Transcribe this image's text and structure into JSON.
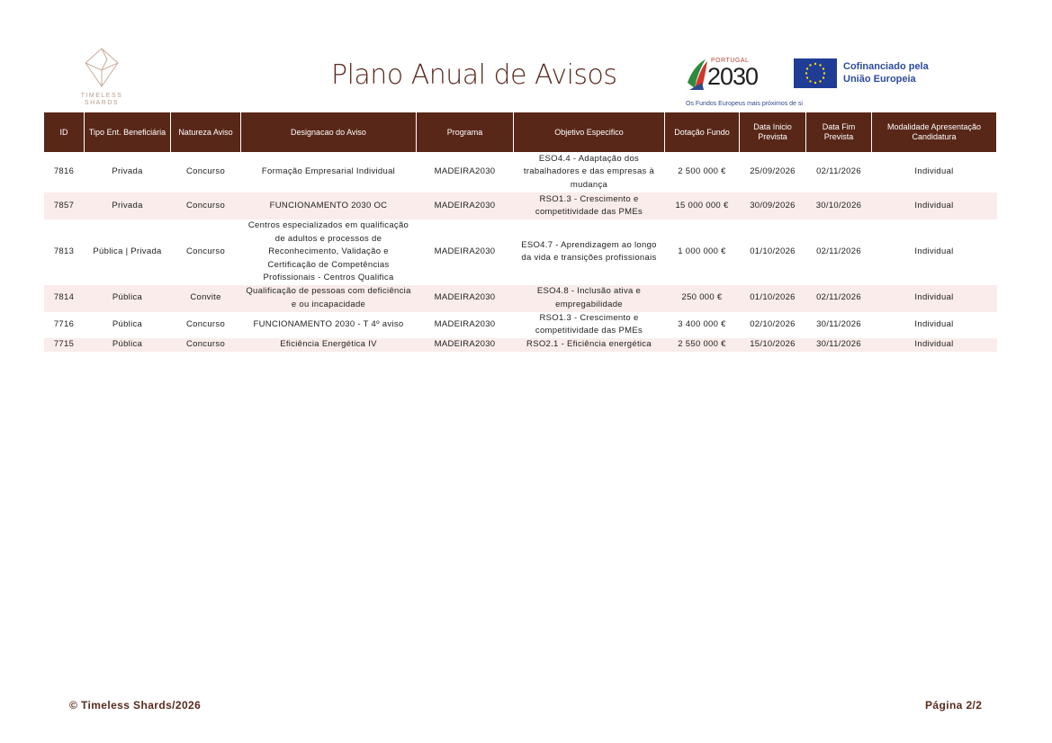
{
  "header": {
    "logo_text": [
      "TIMELESS",
      "SHARDS"
    ],
    "title": "Plano Anual de Avisos",
    "portugal_logo": {
      "word": "PORTUGAL",
      "number": "2030"
    },
    "tagline": "Os Fundos Europeus mais próximos de si",
    "eu_text": [
      "Cofinanciado pela",
      "União Europeia"
    ]
  },
  "colors": {
    "header_bg": "#582718",
    "alt_row": "#f9ecea",
    "title": "#5a2a1e"
  },
  "table": {
    "columns": [
      "ID",
      "Tipo Ent. Beneficiária",
      "Natureza Aviso",
      "Designacao do Aviso",
      "Programa",
      "Objetivo Especifico",
      "Dotação Fundo",
      "Data Inicio Prevista",
      "Data Fim Prevista",
      "Modalidade Apresentação Candidatura"
    ],
    "rows": [
      [
        "7816",
        "Privada",
        "Concurso",
        "Formação Empresarial Individual",
        "MADEIRA2030",
        "ESO4.4 - Adaptação dos trabalhadores e das empresas à mudança",
        "2 500 000 €",
        "25/09/2026",
        "02/11/2026",
        "Individual"
      ],
      [
        "7857",
        "Privada",
        "Concurso",
        "FUNCIONAMENTO 2030 OC",
        "MADEIRA2030",
        "RSO1.3 - Crescimento e competitividade das PMEs",
        "15 000 000 €",
        "30/09/2026",
        "30/10/2026",
        "Individual"
      ],
      [
        "7813",
        "Pública | Privada",
        "Concurso",
        "Centros especializados em qualificação de adultos e processos de Reconhecimento, Validação e Certificação de Competências Profissionais - Centros Qualifica",
        "MADEIRA2030",
        "ESO4.7 - Aprendizagem ao longo da vida e transições profissionais",
        "1 000 000 €",
        "01/10/2026",
        "02/11/2026",
        "Individual"
      ],
      [
        "7814",
        "Pública",
        "Convite",
        "Qualificação de pessoas com deficiência e ou incapacidade",
        "MADEIRA2030",
        "ESO4.8 - Inclusão ativa e empregabilidade",
        "250 000 €",
        "01/10/2026",
        "02/11/2026",
        "Individual"
      ],
      [
        "7716",
        "Pública",
        "Concurso",
        "FUNCIONAMENTO 2030 - T 4º aviso",
        "MADEIRA2030",
        "RSO1.3 - Crescimento e competitividade das PMEs",
        "3 400 000 €",
        "02/10/2026",
        "30/11/2026",
        "Individual"
      ],
      [
        "7715",
        "Pública",
        "Concurso",
        "Eficiência Energética IV",
        "MADEIRA2030",
        "RSO2.1 - Eficiência energética",
        "2 550 000 €",
        "15/10/2026",
        "30/11/2026",
        "Individual"
      ]
    ]
  },
  "footer": {
    "copyright": "© Timeless Shards/2026",
    "page": "Página 2/2"
  }
}
